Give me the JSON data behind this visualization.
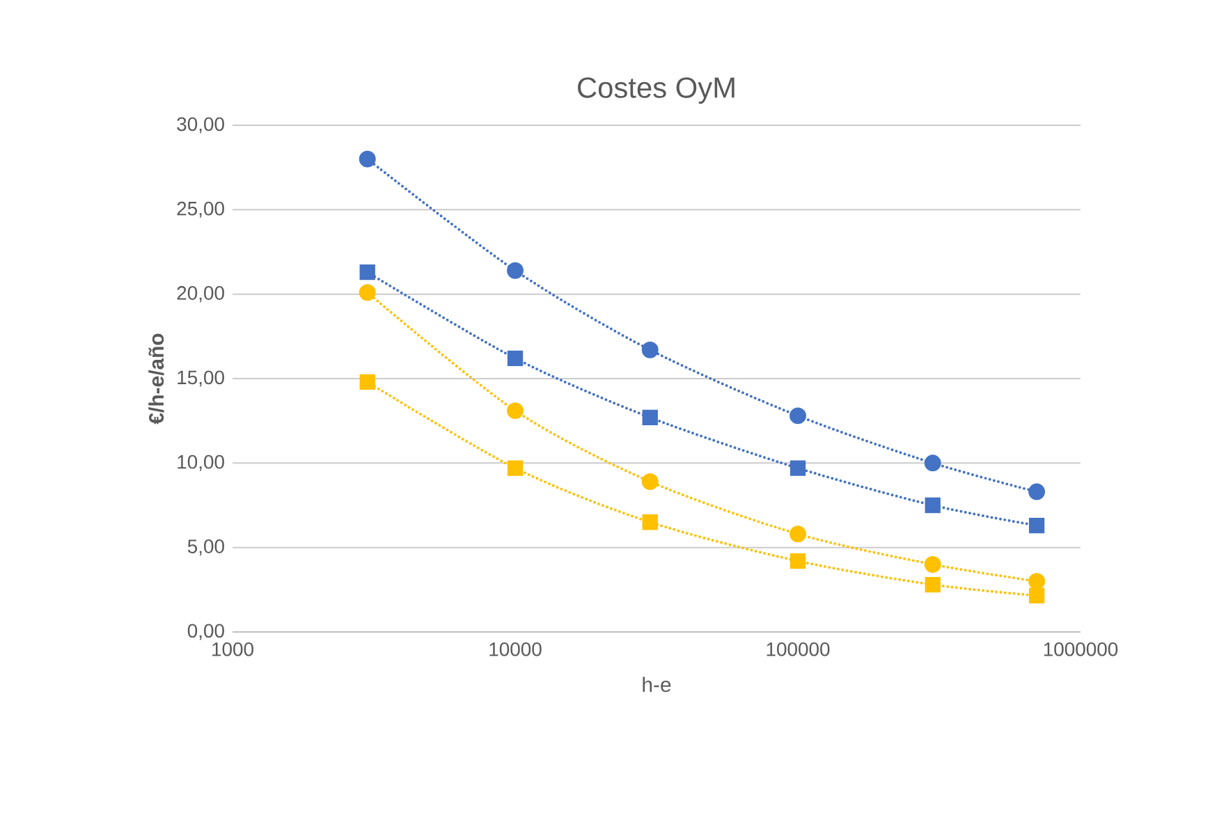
{
  "chart_data": {
    "type": "line",
    "title": "Costes OyM",
    "xlabel": "h-e",
    "ylabel": "€/h-e/año",
    "x": [
      3000,
      10000,
      30000,
      100000,
      300000,
      700000
    ],
    "log": "x",
    "grid": "y",
    "line_style": "dotted",
    "xlim": [
      1000,
      1000000
    ],
    "xticks": [
      1000,
      10000,
      100000,
      1000000
    ],
    "ylim": [
      0,
      30
    ],
    "yticks": [
      {
        "value": 0,
        "label": "0,00"
      },
      {
        "value": 5,
        "label": "5,00"
      },
      {
        "value": 10,
        "label": "10,00"
      },
      {
        "value": 15,
        "label": "15,00"
      },
      {
        "value": 20,
        "label": "20,00"
      },
      {
        "value": 25,
        "label": "25,00"
      },
      {
        "value": 30,
        "label": "30,00"
      }
    ],
    "series": [
      {
        "color": "#4472c4",
        "marker": "circle",
        "values": [
          28.0,
          21.4,
          16.7,
          12.8,
          10.0,
          8.3
        ]
      },
      {
        "color": "#4472c4",
        "marker": "square",
        "values": [
          21.3,
          16.2,
          12.7,
          9.7,
          7.5,
          6.3
        ]
      },
      {
        "color": "#ffc000",
        "marker": "circle",
        "values": [
          20.1,
          13.1,
          8.9,
          5.8,
          4.0,
          3.0
        ]
      },
      {
        "color": "#ffc000",
        "marker": "square",
        "values": [
          14.8,
          9.7,
          6.5,
          4.2,
          2.8,
          2.15
        ]
      }
    ]
  }
}
